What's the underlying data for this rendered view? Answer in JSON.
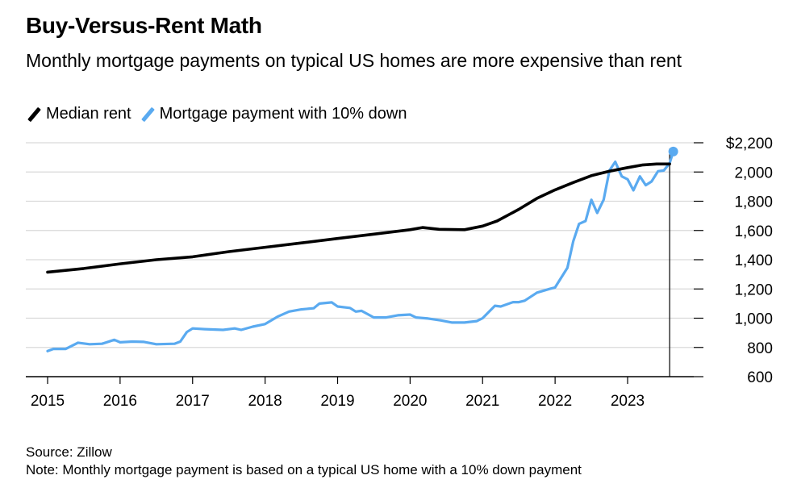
{
  "header": {
    "title": "Buy-Versus-Rent Math",
    "subtitle": "Monthly mortgage payments on typical US homes are more expensive than rent"
  },
  "footer": {
    "source": "Source: Zillow",
    "note": "Note: Monthly mortgage payment is based on a typical US home with a 10% down payment"
  },
  "legend": [
    {
      "label": "Median rent",
      "color": "#000000"
    },
    {
      "label": "Mortgage payment with 10% down",
      "color": "#5aaaf0"
    }
  ],
  "chart_data": {
    "type": "line",
    "title": "Buy-Versus-Rent Math",
    "subtitle": "Monthly mortgage payments on typical US homes are more expensive than rent",
    "xlabel": "",
    "ylabel": "",
    "x_ticks": [
      "2015",
      "2016",
      "2017",
      "2018",
      "2019",
      "2020",
      "2021",
      "2022",
      "2023"
    ],
    "y_ticks": [
      "$2,200",
      "2,000",
      "1,800",
      "1,600",
      "1,400",
      "1,200",
      "1,000",
      "800",
      "600"
    ],
    "xlim": [
      2015.0,
      2023.92
    ],
    "ylim": [
      600,
      2200
    ],
    "grid": "horizontal",
    "legend_position": "top-left",
    "series": [
      {
        "name": "Median rent",
        "color": "#000000",
        "points": [
          [
            2015.0,
            1315
          ],
          [
            2015.5,
            1340
          ],
          [
            2016.0,
            1372
          ],
          [
            2016.5,
            1400
          ],
          [
            2017.0,
            1420
          ],
          [
            2017.5,
            1455
          ],
          [
            2018.0,
            1485
          ],
          [
            2018.5,
            1515
          ],
          [
            2019.0,
            1545
          ],
          [
            2019.5,
            1575
          ],
          [
            2020.0,
            1605
          ],
          [
            2020.17,
            1620
          ],
          [
            2020.4,
            1608
          ],
          [
            2020.75,
            1605
          ],
          [
            2021.0,
            1630
          ],
          [
            2021.2,
            1665
          ],
          [
            2021.5,
            1745
          ],
          [
            2021.75,
            1820
          ],
          [
            2022.0,
            1878
          ],
          [
            2022.25,
            1928
          ],
          [
            2022.5,
            1975
          ],
          [
            2022.75,
            2005
          ],
          [
            2023.0,
            2030
          ],
          [
            2023.2,
            2048
          ],
          [
            2023.4,
            2055
          ],
          [
            2023.58,
            2055
          ]
        ]
      },
      {
        "name": "Mortgage payment with 10% down",
        "color": "#5aaaf0",
        "points": [
          [
            2015.0,
            775
          ],
          [
            2015.08,
            790
          ],
          [
            2015.25,
            790
          ],
          [
            2015.42,
            832
          ],
          [
            2015.58,
            822
          ],
          [
            2015.75,
            825
          ],
          [
            2015.92,
            852
          ],
          [
            2016.0,
            835
          ],
          [
            2016.17,
            840
          ],
          [
            2016.33,
            838
          ],
          [
            2016.5,
            822
          ],
          [
            2016.75,
            825
          ],
          [
            2016.83,
            840
          ],
          [
            2016.92,
            905
          ],
          [
            2017.0,
            930
          ],
          [
            2017.17,
            925
          ],
          [
            2017.42,
            920
          ],
          [
            2017.58,
            930
          ],
          [
            2017.67,
            920
          ],
          [
            2017.83,
            942
          ],
          [
            2018.0,
            960
          ],
          [
            2018.17,
            1010
          ],
          [
            2018.33,
            1045
          ],
          [
            2018.5,
            1060
          ],
          [
            2018.67,
            1068
          ],
          [
            2018.75,
            1100
          ],
          [
            2018.92,
            1108
          ],
          [
            2019.0,
            1080
          ],
          [
            2019.17,
            1070
          ],
          [
            2019.25,
            1045
          ],
          [
            2019.33,
            1050
          ],
          [
            2019.5,
            1005
          ],
          [
            2019.67,
            1005
          ],
          [
            2019.83,
            1020
          ],
          [
            2020.0,
            1025
          ],
          [
            2020.08,
            1005
          ],
          [
            2020.25,
            998
          ],
          [
            2020.42,
            985
          ],
          [
            2020.58,
            970
          ],
          [
            2020.75,
            970
          ],
          [
            2020.92,
            980
          ],
          [
            2021.0,
            1000
          ],
          [
            2021.17,
            1085
          ],
          [
            2021.25,
            1080
          ],
          [
            2021.42,
            1110
          ],
          [
            2021.5,
            1110
          ],
          [
            2021.58,
            1120
          ],
          [
            2021.75,
            1175
          ],
          [
            2021.92,
            1200
          ],
          [
            2022.0,
            1210
          ],
          [
            2022.17,
            1345
          ],
          [
            2022.25,
            1525
          ],
          [
            2022.33,
            1645
          ],
          [
            2022.42,
            1665
          ],
          [
            2022.5,
            1810
          ],
          [
            2022.58,
            1720
          ],
          [
            2022.67,
            1810
          ],
          [
            2022.75,
            2010
          ],
          [
            2022.83,
            2070
          ],
          [
            2022.92,
            1970
          ],
          [
            2023.0,
            1950
          ],
          [
            2023.08,
            1875
          ],
          [
            2023.17,
            1970
          ],
          [
            2023.25,
            1910
          ],
          [
            2023.33,
            1935
          ],
          [
            2023.42,
            2005
          ],
          [
            2023.5,
            2010
          ],
          [
            2023.58,
            2060
          ],
          [
            2023.63,
            2140
          ]
        ]
      }
    ]
  }
}
